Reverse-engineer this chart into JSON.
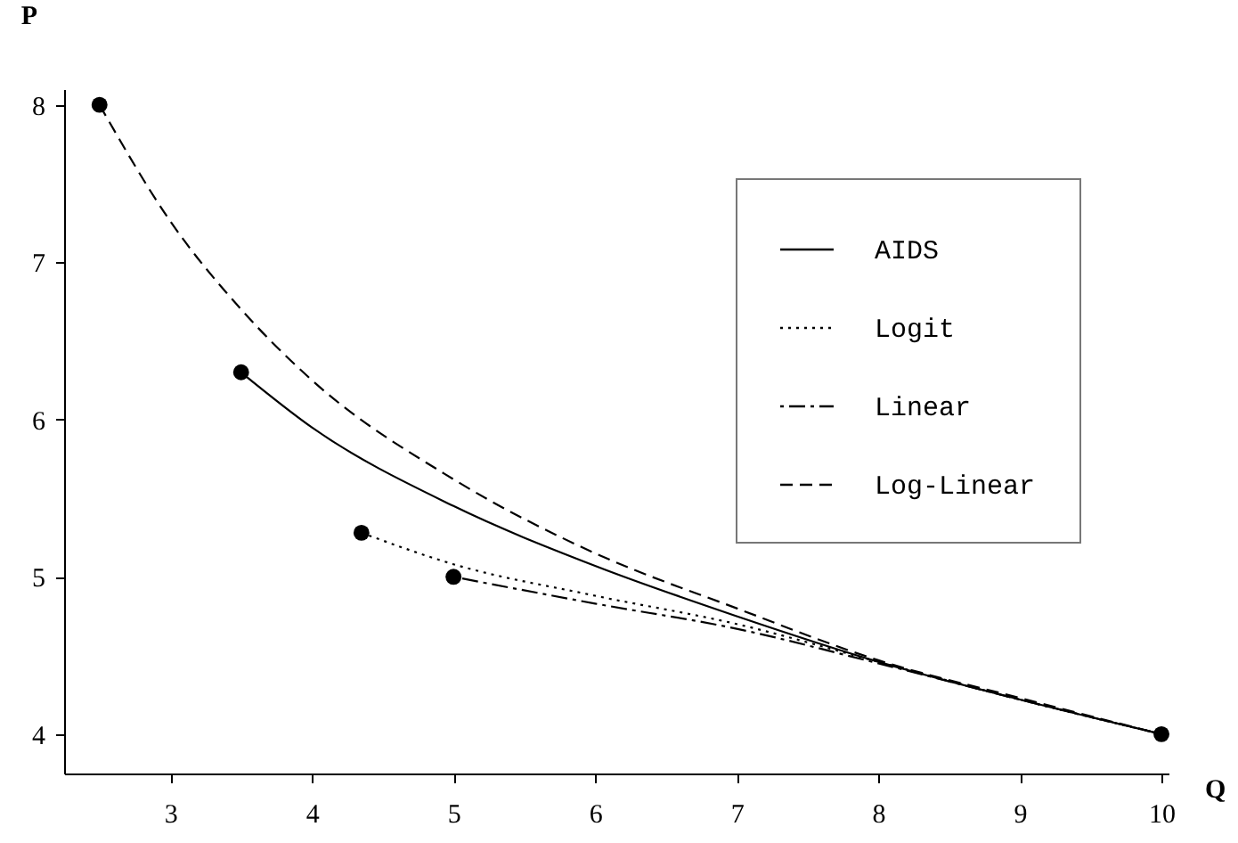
{
  "chart_data": {
    "type": "line",
    "xlabel": "Q",
    "ylabel": "P",
    "xlim": [
      2.25,
      10.05
    ],
    "ylim": [
      3.75,
      8.1
    ],
    "xticks": [
      3,
      4,
      5,
      6,
      7,
      8,
      9,
      10
    ],
    "yticks": [
      4,
      5,
      6,
      7,
      8
    ],
    "grid": false,
    "legend": "top right",
    "series": [
      {
        "name": "AIDS",
        "color": "#000000",
        "line_style": "solid",
        "x": [
          3.5,
          4,
          5,
          6,
          7,
          8,
          9,
          10
        ],
        "values": [
          6.3,
          5.95,
          5.45,
          5.07,
          4.75,
          4.46,
          4.22,
          4.0
        ]
      },
      {
        "name": "Logit",
        "color": "#000000",
        "line_style": "dotted",
        "x": [
          4.35,
          5,
          6,
          7,
          8,
          9,
          10
        ],
        "values": [
          5.28,
          5.08,
          4.88,
          4.7,
          4.46,
          4.22,
          4.0
        ]
      },
      {
        "name": "Linear",
        "color": "#000000",
        "line_style": "dashdot",
        "x": [
          5,
          6,
          7,
          8,
          9,
          10
        ],
        "values": [
          5.0,
          4.83,
          4.67,
          4.45,
          4.22,
          4.0
        ]
      },
      {
        "name": "Log-Linear",
        "color": "#000000",
        "line_style": "dashed",
        "x": [
          2.5,
          3,
          3.5,
          4,
          5,
          6,
          7,
          8,
          9,
          10
        ],
        "values": [
          8.0,
          7.26,
          6.7,
          6.25,
          5.62,
          5.15,
          4.8,
          4.47,
          4.23,
          4.0
        ]
      },
      {
        "type": "scatter",
        "color": "#000000",
        "marker": "circle",
        "x": [
          2.5,
          3.5,
          4.35,
          5,
          10
        ],
        "values": [
          8.0,
          6.3,
          5.28,
          5.0,
          4.0
        ]
      }
    ]
  }
}
